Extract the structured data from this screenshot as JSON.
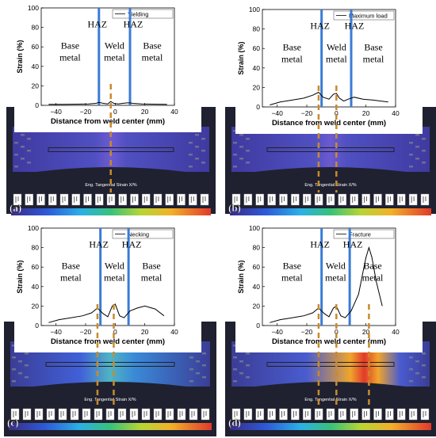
{
  "figure": {
    "chart_data": [
      {
        "type": "line",
        "panel_label": "(a)",
        "legend": "Yielding",
        "xlabel": "Distance from weld center (mm)",
        "ylabel": "Strain (%)",
        "xlim": [
          -50,
          40
        ],
        "ylim": [
          0,
          100
        ],
        "xticks": [
          -40,
          -20,
          0,
          20,
          40
        ],
        "yticks": [
          0,
          20,
          40,
          60,
          80,
          100
        ],
        "regions": [
          {
            "label": "Base\nmetal",
            "kind": "text"
          },
          {
            "label": "HAZ",
            "kind": "text"
          },
          {
            "label": "Weld\nmetal",
            "kind": "text"
          },
          {
            "label": "HAZ",
            "kind": "text"
          },
          {
            "label": "Base\nmetal",
            "kind": "text"
          }
        ],
        "haz_lines": [
          -11,
          10
        ],
        "dashed_lines": [
          -3
        ],
        "x": [
          -45,
          -35,
          -25,
          -18,
          -13,
          -11,
          -8,
          -5,
          -3,
          -1,
          2,
          5,
          8,
          10,
          12,
          18,
          25,
          35
        ],
        "y": [
          1,
          1,
          1.2,
          1.5,
          2,
          3,
          2,
          1.5,
          4,
          2,
          1.5,
          2,
          2.5,
          2.5,
          2,
          1.5,
          1.2,
          1
        ],
        "dic_label": "Eng. Tangential Strain X/%"
      },
      {
        "type": "line",
        "panel_label": "(b)",
        "legend": "Maximum load",
        "xlabel": "Distance from weld center (mm)",
        "ylabel": "Strain (%)",
        "xlim": [
          -50,
          40
        ],
        "ylim": [
          0,
          100
        ],
        "xticks": [
          -40,
          -20,
          0,
          20,
          40
        ],
        "yticks": [
          0,
          20,
          40,
          60,
          80,
          100
        ],
        "regions": [
          {
            "label": "Base\nmetal",
            "kind": "text"
          },
          {
            "label": "HAZ",
            "kind": "text"
          },
          {
            "label": "Weld\nmetal",
            "kind": "text"
          },
          {
            "label": "HAZ",
            "kind": "text"
          },
          {
            "label": "Base\nmetal",
            "kind": "text"
          }
        ],
        "haz_lines": [
          -10,
          10
        ],
        "dashed_lines": [
          -12,
          0
        ],
        "x": [
          -45,
          -38,
          -30,
          -22,
          -16,
          -12,
          -9,
          -5,
          -2,
          0,
          2,
          5,
          8,
          12,
          18,
          25,
          35
        ],
        "y": [
          2,
          5,
          7,
          9,
          12,
          15,
          10,
          8,
          13,
          14,
          9,
          6,
          8,
          10,
          8,
          7,
          5
        ],
        "dic_label": "Eng. Tangential Strain X/%"
      },
      {
        "type": "line",
        "panel_label": "(c)",
        "legend": "Necking",
        "xlabel": "Distance from weld center (mm)",
        "ylabel": "Strain (%)",
        "xlim": [
          -50,
          40
        ],
        "ylim": [
          0,
          100
        ],
        "xticks": [
          -40,
          -20,
          0,
          20,
          40
        ],
        "yticks": [
          0,
          20,
          40,
          60,
          80,
          100
        ],
        "regions": [
          {
            "label": "Base\nmetal",
            "kind": "text"
          },
          {
            "label": "HAZ",
            "kind": "text"
          },
          {
            "label": "Weld\nmetal",
            "kind": "text"
          },
          {
            "label": "HAZ",
            "kind": "text"
          },
          {
            "label": "Base\nmetal",
            "kind": "text"
          }
        ],
        "haz_lines": [
          -10,
          9
        ],
        "dashed_lines": [
          -12,
          -1
        ],
        "x": [
          -45,
          -38,
          -30,
          -22,
          -16,
          -12,
          -8,
          -5,
          -2,
          0,
          3,
          6,
          10,
          15,
          20,
          27,
          33
        ],
        "y": [
          3,
          6,
          8,
          10,
          13,
          18,
          12,
          9,
          20,
          22,
          10,
          8,
          15,
          18,
          20,
          17,
          10
        ],
        "dic_label": "Eng. Tangential Strain X/%"
      },
      {
        "type": "line",
        "panel_label": "(d)",
        "legend": "Fracture",
        "xlabel": "Distance from weld center (mm)",
        "ylabel": "Strain (%)",
        "xlim": [
          -50,
          40
        ],
        "ylim": [
          0,
          100
        ],
        "xticks": [
          -40,
          -20,
          0,
          20,
          40
        ],
        "yticks": [
          0,
          20,
          40,
          60,
          80,
          100
        ],
        "regions": [
          {
            "label": "Base\nmetal",
            "kind": "text"
          },
          {
            "label": "HAZ",
            "kind": "text"
          },
          {
            "label": "Weld\nmetal",
            "kind": "text"
          },
          {
            "label": "HAZ",
            "kind": "text"
          },
          {
            "label": "Base\nmetal",
            "kind": "text"
          }
        ],
        "haz_lines": [
          -10,
          9
        ],
        "dashed_lines": [
          -12,
          0,
          22
        ],
        "x": [
          -45,
          -38,
          -30,
          -22,
          -16,
          -12,
          -8,
          -5,
          -2,
          0,
          3,
          6,
          10,
          15,
          18,
          20,
          22,
          24,
          27,
          31
        ],
        "y": [
          3,
          6,
          8,
          10,
          13,
          18,
          12,
          9,
          18,
          20,
          10,
          8,
          15,
          32,
          55,
          70,
          80,
          70,
          45,
          20
        ],
        "dic_label": "Eng. Tangential Strain X/%"
      }
    ]
  },
  "colors": {
    "haz_line": "#3b7bd6",
    "dashed_line": "#c98a2b",
    "curve": "#000000",
    "specimen_dark": "#2b2f45",
    "specimen_blue": "#4b51b9",
    "specimen_purple": "#6a44b5"
  }
}
